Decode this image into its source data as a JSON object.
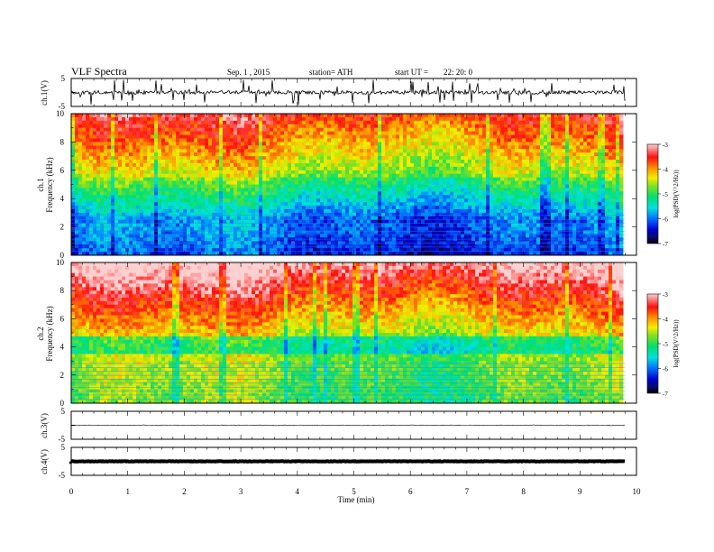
{
  "header": {
    "title": "VLF Spectra",
    "date": "Sep. 1 , 2015",
    "station": "station= ATH",
    "start_label": "start UT =",
    "start_time": "22: 20: 0"
  },
  "chart_data": {
    "type": "spectrogram",
    "xlabel": "Time (min)",
    "x_ticks": [
      "0",
      "1",
      "2",
      "3",
      "4",
      "5",
      "6",
      "7",
      "8",
      "9",
      "10"
    ],
    "xlim": [
      0,
      10
    ],
    "data_end_min": 9.8,
    "panels": [
      {
        "id": "ch1-waveform",
        "type": "line",
        "ylabel": "ch.1(V)",
        "y_ticks": [
          "5",
          "-5"
        ],
        "ylim": [
          -5,
          5
        ]
      },
      {
        "id": "ch1-spectrogram",
        "type": "heatmap",
        "ylabel": "Frequency (kHz)",
        "channel_label": "ch.1",
        "y_ticks": [
          "0",
          "2",
          "4",
          "6",
          "8",
          "10"
        ],
        "ylim": [
          0,
          10
        ],
        "colorbar": {
          "label": "log(PSD(V^2/Hz))",
          "ticks": [
            "-3",
            "-4",
            "-5",
            "-6",
            "-7"
          ],
          "range": [
            -7,
            -3
          ]
        }
      },
      {
        "id": "ch2-spectrogram",
        "type": "heatmap",
        "ylabel": "Frequency (kHz)",
        "channel_label": "ch.2",
        "y_ticks": [
          "0",
          "2",
          "4",
          "6",
          "8",
          "10"
        ],
        "ylim": [
          0,
          10
        ],
        "colorbar": {
          "label": "log(PSD(V^2/Hz))",
          "ticks": [
            "-3",
            "-4",
            "-5",
            "-6",
            "-7"
          ],
          "range": [
            -7,
            -3
          ]
        }
      },
      {
        "id": "ch3-waveform",
        "type": "line",
        "ylabel": "ch.3(V)",
        "y_ticks": [
          "5",
          "-5"
        ],
        "ylim": [
          -5,
          5
        ]
      },
      {
        "id": "ch4-waveform",
        "type": "line",
        "ylabel": "ch.4(V)",
        "y_ticks": [
          "5",
          "-5"
        ],
        "ylim": [
          -5,
          5
        ]
      }
    ]
  }
}
